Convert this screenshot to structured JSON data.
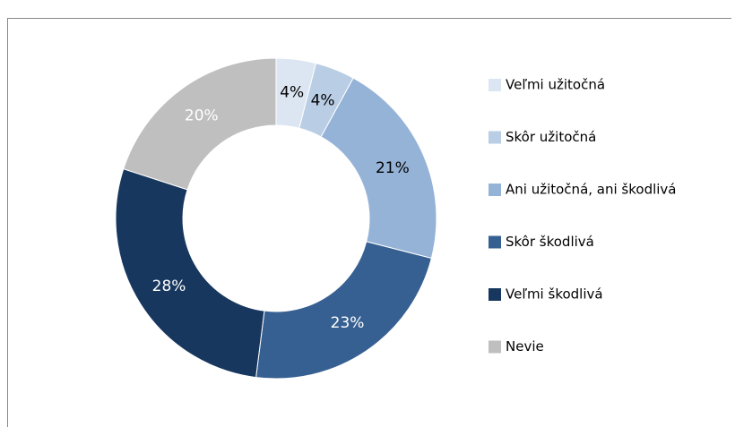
{
  "chart_data": {
    "type": "donut",
    "categories": [
      "Veľmi užitočná",
      "Skôr užitočná",
      "Ani užitočná, ani škodlivá",
      "Skôr škodlivá",
      "Veľmi škodlivá",
      "Nevie"
    ],
    "values": [
      4,
      4,
      21,
      23,
      28,
      20
    ],
    "value_labels": [
      "4%",
      "4%",
      "21%",
      "23%",
      "28%",
      "20%"
    ],
    "colors": [
      "#dce6f2",
      "#b9cde5",
      "#95b3d7",
      "#376092",
      "#17375e",
      "#bfbfbf"
    ],
    "label_colors": [
      "#000000",
      "#000000",
      "#000000",
      "#ffffff",
      "#ffffff",
      "#ffffff"
    ],
    "legend": "right"
  }
}
